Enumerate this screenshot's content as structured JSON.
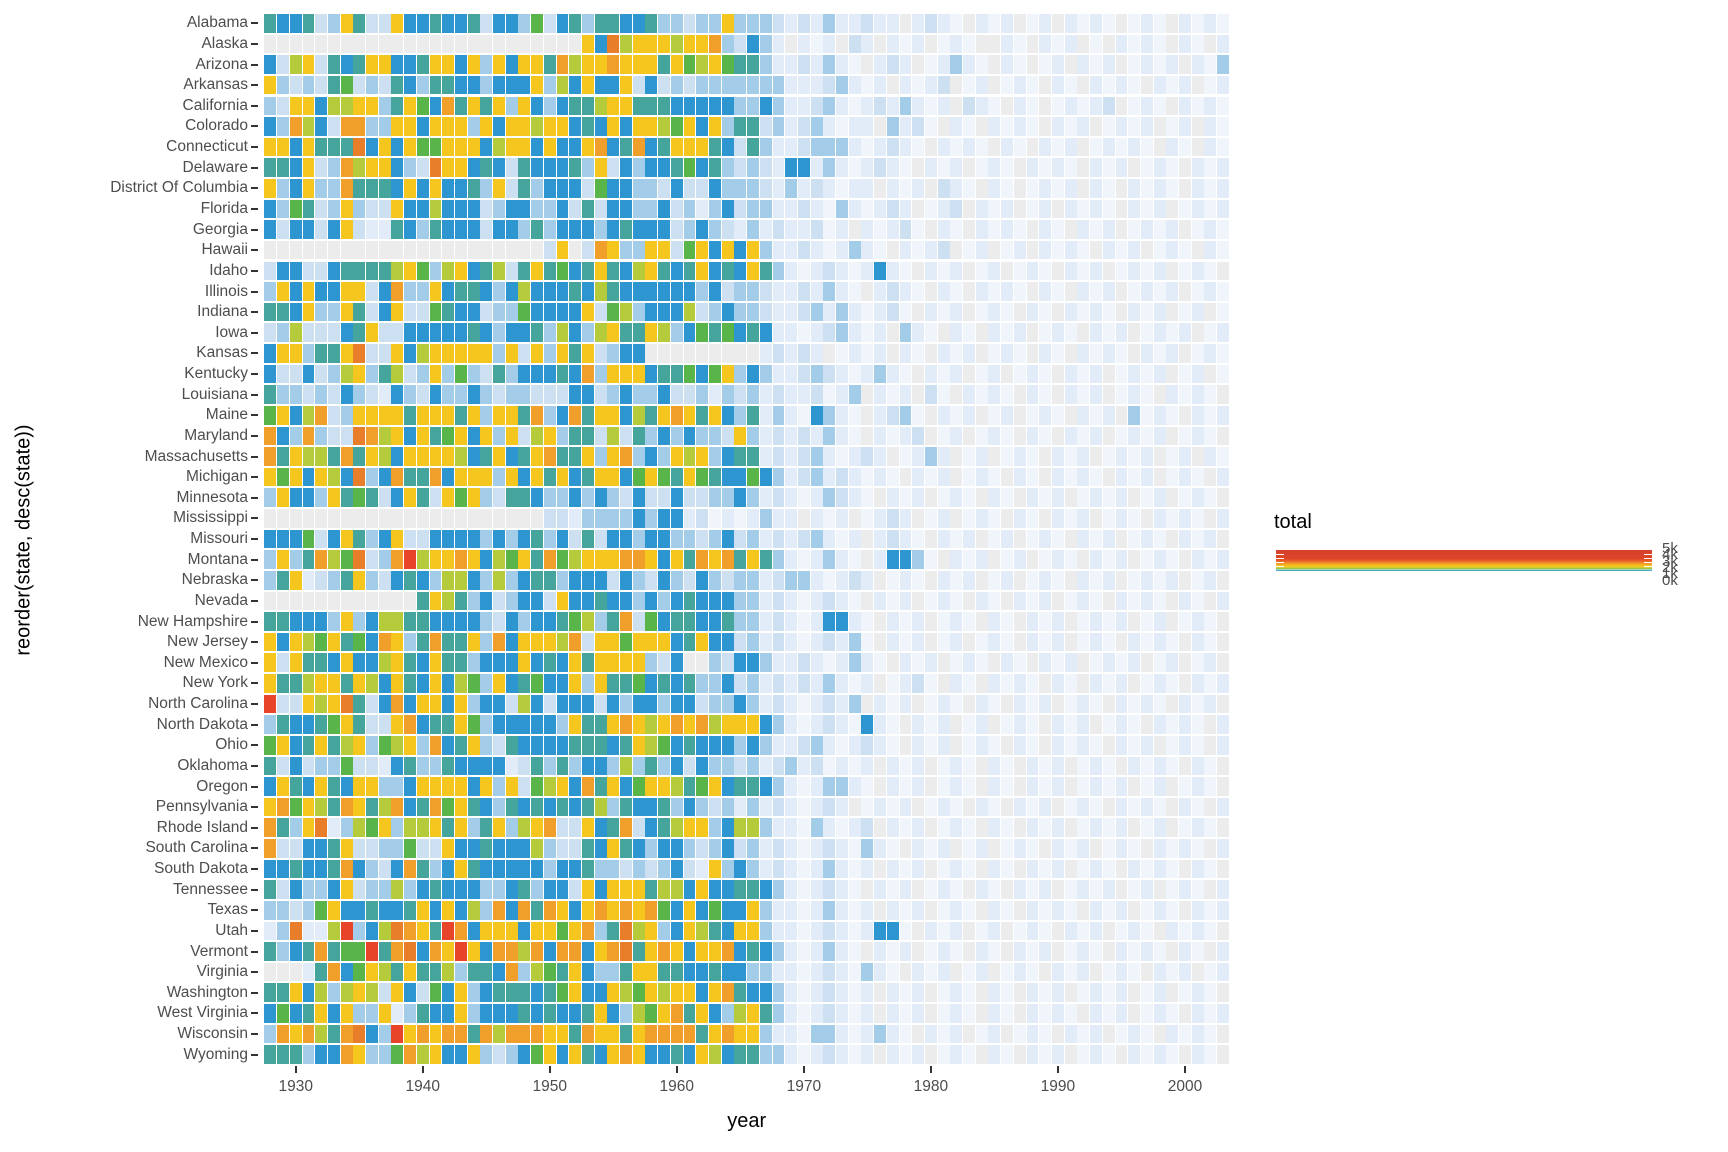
{
  "figure": {
    "y_axis_title": "reorder(state, desc(state))",
    "x_axis_title": "year",
    "legend": {
      "title": "total",
      "overlapping_labels": [
        "5k",
        "4k",
        "3k",
        "2k",
        "1k",
        "0k"
      ],
      "label_color": "#4d4d4d",
      "tick_color": "#ffffff",
      "gradient_top_to_bottom": [
        {
          "stop": 0,
          "color": "#d7402b"
        },
        {
          "stop": 40,
          "color": "#dc4529"
        },
        {
          "stop": 52,
          "color": "#e95f28"
        },
        {
          "stop": 62,
          "color": "#f0922a"
        },
        {
          "stop": 71,
          "color": "#f4b622"
        },
        {
          "stop": 78,
          "color": "#f6ca1d"
        },
        {
          "stop": 83,
          "color": "#d8cb2e"
        },
        {
          "stop": 87,
          "color": "#adc83d"
        },
        {
          "stop": 91,
          "color": "#74ba50"
        },
        {
          "stop": 93.5,
          "color": "#ffffff"
        },
        {
          "stop": 95,
          "color": "#4bafc4"
        },
        {
          "stop": 100,
          "color": "#3fa9c9"
        }
      ]
    },
    "tick_label_color": "#4d4d4d",
    "tick_mark_color": "#333333"
  },
  "chart_data": {
    "type": "heatmap",
    "title": "",
    "xlabel": "year",
    "ylabel": "reorder(state, desc(state))",
    "x_range": [
      1928,
      2003
    ],
    "x_ticks": [
      1930,
      1940,
      1950,
      1960,
      1970,
      1980,
      1990,
      2000
    ],
    "legend_scale": "fill = total (counts, ~0k low teal/blue to ~5k high red)",
    "palette": {
      ".": "#ececec",
      "w": "#f0f4fb",
      "q": "#e2ecf8",
      "p": "#cde0f2",
      "l": "#a3cce8",
      "b": "#2d95d0",
      "t": "#45a49c",
      "g": "#59b44a",
      "v": "#b5cb3b",
      "y": "#f5c71e",
      "o": "#f0a02a",
      "O": "#e87d2a",
      "r": "#e8442a"
    },
    "palette_meaning": {
      ".": "no data (NA)",
      "w": "near zero",
      "q": "very low",
      "p": "low",
      "l": "moderate-low",
      "b": "moderate (blue)",
      "t": "moderate (teal)",
      "g": "elevated (green)",
      "v": "high (yellow-green)",
      "y": "high (gold)",
      "o": "very high (orange)",
      "O": "very high (deep orange)",
      "r": "extreme (red)"
    },
    "rows": [
      {
        "state": "Alabama",
        "cells": "tbbtplytppybbtbbtpbblgpbtlttbbtllpllylllpqpqlqqpqq.qpqw.qwq.wq.qwqw.wqw.qwqw"
      },
      {
        "state": "Alaska",
        "cells": ".........................ybOvyyyvyyolpblq.qwq.pq.qwq.wqw..qw.qwq.w.qwqw.qw.q"
      },
      {
        "state": "Arizona",
        "cells": "bpvyptbtyybbtyybylybyytovyyoyyytygvygttlqqpqlqw.qpq.wqlqw.qw.wq.qwq.wqwq.qwl"
      },
      {
        "state": "Arkansas",
        "cells": "ylplptgplptblttbblbbbylvbybbypbplplllllllqqqplqwq.qwqp.wq.wqw.qw.qwqw.qwq.wqw"
      },
      {
        "state": "California",
        "cells": "lpyybvvyyltygbotytylyblbttvyytttbbbbbllblqqplqwqpqlqwq.pqw.qw.wqwqp.wqw.qwqw."
      },
      {
        "state": "Colorado",
        "cells": "blovbpoollyybyyylybyyvyybtbybyyvgybylttplqplqwqq.lqpw.qw.qwqw.qwq.wqwq.wq.qw"
      },
      {
        "state": "Connecticut",
        "cells": "yybytttObybyggyyybvyybybbyobtobtyyytbptlqqplllqwqpqw.qwqw.qw.qwq.wqwqw.qw.qw"
      },
      {
        "state": "Delaware",
        "cells": "ttbyplovyyblpOyybtbptbbbtlypblbbtgbtlplpqbbqlqwqpqw.qwq.wqw.qwqw.qwq.wqw.qwq"
      },
      {
        "state": "District Of Columbia",
        "cells": "ylbyllotttbybybbtlyptlbbbpgbbllpbppblllpqlqpqwqq.qwq.pqw.qw.wqwq.qw.qwqw.qwq"
      },
      {
        "state": "Florida",
        "cells": "blgtplylppybbvbbbplbbllbptpbbllbplqlbpllqqpqwlqwqpq.wqp.qwq.wq.qwqw.qwq.wqwq"
      },
      {
        "state": "Georgia",
        "cells": "bpbbpbypqqtbltbbbpbbltlbbblbtbbbplblpqlqpqqpwq.qwqpw.qw.qwqw.qw.qwq.wqwq.wqw"
      },
      {
        "state": "Hawaii",
        "cells": "......................py.poyllyypgybybylqqpqwqlqw.qwqp.wq.wq.qwqw.qwq.wqw.qw"
      },
      {
        "state": "Idaho",
        "cells": "pbbppbttttvyglvybtvptytgbtytbvytbtybtbytlqwqpqwqbqw.qwq.wq.wqw.qwq.wqwq.wqw."
      },
      {
        "state": "Illinois",
        "cells": "lybybbyypbollybttblbvbbbtbvtbbbbbblbpllpqqpqlqw.qpqw.qw.qwqw.qw.qwq.wqwq.wqw"
      },
      {
        "state": "Indiana",
        "cells": "ttbyllytpbyppgtbbpllgbbbbypgvlbbbvplbllpqqplqlqwqpw.qwq.wqw.qw.qwqw.qwq.wq.w"
      },
      {
        "state": "Iowa",
        "cells": "plvpppbtyppbbbbbtblbbtlvblvyttyvlbgtgbtbqqwqplqwq.lqw.qw.qwq.wqw.qwq.wqwq.wq"
      },
      {
        "state": "Kansas",
        "cells": "byylttyOppybvyyyyylypylytyplbb.........qpqpq.wqwq.qw.qwq.wqw.qw.qwqw.qwq.wqw"
      },
      {
        "state": "Kentucky",
        "cells": "bppbplvyltvplylglptlbbbtbolyyybttgbgylblqqplpqwqlqw.qwq.wq.wqw.qwq.wqwq.wq.w"
      },
      {
        "state": "Louisiana",
        "cells": "tllplpblpqblpbllblpllpppbbplbllbpplqlplqpqqpwql.qwq.pw.qwqw.qw.qwq.wqw.qwqw."
      },
      {
        "state": "Maine",
        "cells": "gybvoplyyyytyyytylyytolbotyybvtyoytybltqlqwblqw.qplw.qwq.wq.wqw.qwq.lwqw.qwq"
      },
      {
        "state": "Maryland",
        "cells": "oblolppOovybytgybylypvylttpvptlblbllpylqpqpqlqw.qwqp.wq.wqw.qw.qwq.wqwq.wqw."
      },
      {
        "state": "Massachusetts",
        "cells": "otyvvtotyvbyyyyvbtybtyottylyolblyvylbttqpqplqwqpq.wqlq.wq.wqw.qwq.wqwq.wq.qw"
      },
      {
        "state": "Michigan",
        "cells": "ygybyvbOlbottobyyylybytybtyybgygtygtbbgblqplqpqwqw.qwq.wqw.qw.qwqw.qwq.wqw.q"
      },
      {
        "state": "Minnesota",
        "cells": "lybblytgtpbytpygylpttbllblblpbppbppllblqpqwqlpqw.qwq.wqw.qw.qwq.wqwq.wq.wqw."
      },
      {
        "state": "Mississippi",
        "cells": "......................ppqllllblbbqpwqwqlqq.qwq.wqpq.wq.wqw.qw.qwq.wqw.qwqw.q"
      },
      {
        "state": "Missouri",
        "cells": "bbbgpbytlbyppbbbblblbtlbptpbblbbllplbplqpqplqwq.qpqw.qwq.wq.wqw.qwq.wqw.qwq."
      },
      {
        "state": "Montana",
        "cells": "lyltovgOplorvyyoybvgytogvyyyooybytoyotytlqwqlqw.qbblw.qwq.wq.wqw.qwq.wqw.qwq"
      },
      {
        "state": "Nebraska",
        "cells": "ltyqpltylpbtblvvblvlbttlbbbpblpblpblpllqpllqwqpq.wqw.qwq.wq.wqw.qwq.wqwq.wq."
      },
      {
        "state": "Nevada",
        "cells": "............tyvtlbplbbpybbtbblblbtbbbllqpqwqpqw.qwq.wqw.qw.qwq.wqw.qwqw.qw.q"
      },
      {
        "state": "New Hampshire",
        "cells": "ttbbblylbvvttbbbblpblbbtgvltopgbttbbtllqpqwqbbqw.qwq.wqw.qw.qwq.wqwq.wq.wqw."
      },
      {
        "state": "New Jersey",
        "cells": "ybyvgytgboyltottylobyyyvopyygyyybtybbplqpqwqpqlw.qwq.wq.wqw.qwq.wqw.qwqw.qw."
      },
      {
        "state": "New Mexico",
        "cells": "ypyttbybbvytbyttlbbbybtbytyyyylpb..lpbblqqpqwqlqw.qwq.wqw.qw.qwq.wqwq.wq.wq."
      },
      {
        "state": "New York",
        "cells": "yttvyytyvbytbybvglybtgbbylyttgbtbtllbplqpqpqlqwq.wqpw.qw.qwqw.qw.qwq.wqw.qwq"
      },
      {
        "state": "North Carolina",
        "cells": "rppyvyOtpbobyybylbbpvbpbbbpblbblbbpllblqpqwqpql.qwq.wqw.qw.qwq.wqw.qwqw.qwq."
      },
      {
        "state": "North Dakota",
        "cells": "ltbbtgytppyobttyglbbbbblyttyoyvyoyovyyyblqwqpqwbqw.qwq.wq.wqw.qwq.wqw.qwqw.q"
      },
      {
        "state": "Ohio",
        "cells": "gybtytvylgvylobtylptbbbbtttbtyvgbtbbblblqqplqwqpqw.qwq.wqw.qw.qwqw.qwq.wqw.q"
      },
      {
        "state": "Oklahoma",
        "cells": "tpbpllgppqbtlltbbbbqptltlbblvltlbpbllplqplqpwqwq.qwq.wqw.qw.qwq.wqw.qwqw.qw."
      },
      {
        "state": "Oregon",
        "cells": "bytbytbyyllbyyyybylypgvybotybgyyvtgybttblqwqllqw.qwq.wqw.qw.qwq.wqwq.wq.wqw."
      },
      {
        "state": "Pennsylvania",
        "cells": "yogyvtoytvobtogytbltbtbtbtvltbbtlblplqlqpqwqpq.wqwq.wqw.qw.qwq.wqw.qwqw.qw.q"
      },
      {
        "state": "Rhode Island",
        "cells": "otlyOqlvgylvvytyltylvyoppybtopbtvyylbvvlqqwlqwqp.qwq.wqw.qw.qwq.wqwq.wq.wqw."
      },
      {
        "state": "South Carolina",
        "cells": "oppbbtyppllgppybbtbbbvlpptbytblbblplbplqpqwqpqwlqw.qwq.wq.wqw.qwq.wqw.qwqw.q"
      },
      {
        "state": "South Dakota",
        "cells": "bbtbbtoblpbotlbytbbbbblbbtllplplbpqylblqpqwqlqwq.qwq.wqw.qw.qwq.wqw.qwqw.qw."
      },
      {
        "state": "Tennessee",
        "cells": "tpbllbypllvlbtbbbllbtlbbpybyyytvvbybbttblqwqpqw.qwq.wqw.qw.qwq.wqwq.wq.wqw.q"
      },
      {
        "state": "Texas",
        "cells": "llplgybbtbbtybybvloboto ybyoyoyogbybgbbylqqwqlqwq.qwq.wqw.qw.qwqw.qwq.wqw.qwq"
      },
      {
        "state": "Utah",
        "cells": "qlOqqvrlbvOoytrobyyybyygyoltOvylbyvtbyylqqwqpqwqbbw.qwq.wq.wqw.qwq.wqw.qwqw."
      },
      {
        "state": "Vermont",
        "cells": "tlbtotggrtoOboyryboovoboobyoOtyoybyyobtblqwqlqw.qwq.wqw.qw.qwq.wqw.qwqw.qw.q"
      },
      {
        "state": "Virginia",
        "cells": "...qtobgyvtyttvlttbolvgtyblltyyttbbtbbllqqwqpqwlqw.qwq.wq.wqw.qwq.wqw.qwq.wq"
      },
      {
        "state": "Washington",
        "cells": "ttybvlvyvpybpgbylbtttbtgybbyvgyvyybyotbblqwqpqwq.qwq.wqw.qw.qwq.wqwq.wq.wqw."
      },
      {
        "state": "West Virginia",
        "cells": "bgbtybyllyqltbbylbbbtbtbbtyblvgyotyblvytlqwqpqwq.qwq.wqw.qw.qwqw.qwq.wqw.qwq"
      },
      {
        "state": "Wisconsin",
        "cells": "loyovtoOblryoyootovoooyytoyytyooootyoyylqqwllqwqlqw.qwq.wq.wqw.qwq.wqw.qwqw."
      },
      {
        "state": "Wyoming",
        "cells": "tttlbboyllgovybbylplbgybytbyoybbtbyvbttllqwqpqwq.qwq.wqw.qw.qwq.wqw.qwqw.qw."
      }
    ]
  },
  "layout_note": "x years 1928-2003 left to right; rows alphabetical top to bottom"
}
